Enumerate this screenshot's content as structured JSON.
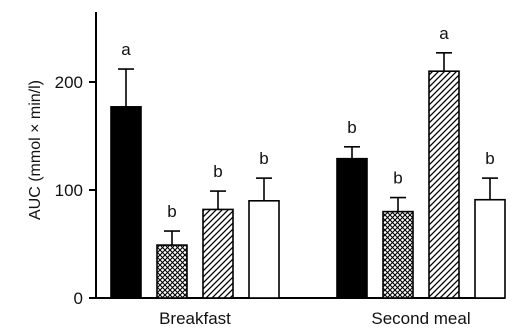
{
  "chart_data": {
    "type": "bar",
    "title": "",
    "xlabel": "",
    "ylabel": "AUC (mmol × min/l)",
    "ylim": [
      0,
      260
    ],
    "yticks": [
      0,
      100,
      200
    ],
    "categories": [
      "Breakfast",
      "Second meal"
    ],
    "series": [
      {
        "pattern": "solid",
        "color": "#000000",
        "values": [
          177,
          129
        ],
        "errors": [
          35,
          11
        ],
        "letters": [
          "a",
          "b"
        ]
      },
      {
        "pattern": "crosshatch",
        "color": "#000000",
        "values": [
          49,
          80
        ],
        "errors": [
          13,
          13
        ],
        "letters": [
          "b",
          "b"
        ]
      },
      {
        "pattern": "diagonal",
        "color": "#000000",
        "values": [
          82,
          210
        ],
        "errors": [
          17,
          17
        ],
        "letters": [
          "b",
          "a"
        ]
      },
      {
        "pattern": "open",
        "color": "#000000",
        "values": [
          90,
          91
        ],
        "errors": [
          21,
          20
        ],
        "letters": [
          "b",
          "b"
        ]
      }
    ],
    "grid": false,
    "legend": "none"
  }
}
